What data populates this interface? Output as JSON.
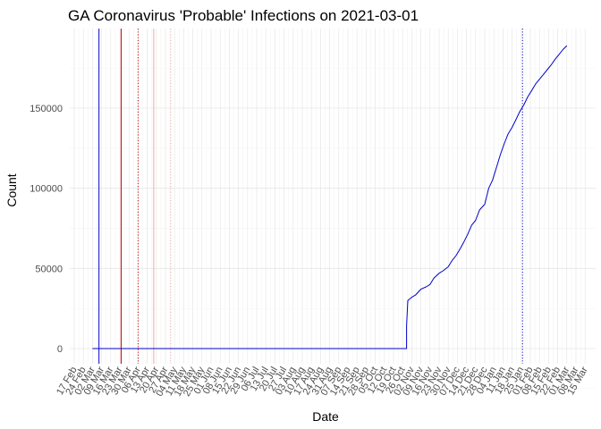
{
  "chart_data": {
    "type": "line",
    "title": "GA Coronavirus 'Probable' Infections on 2021-03-01",
    "xlabel": "Date",
    "ylabel": "Count",
    "ylim": [
      -10000,
      197000
    ],
    "y_ticks": [
      0,
      50000,
      100000,
      150000
    ],
    "y_tick_labels": [
      "0",
      "50000",
      "100000",
      "150000"
    ],
    "x_tick_labels": [
      "17 Feb",
      "24 Feb",
      "02 Mar",
      "09 Mar",
      "16 Mar",
      "23 Mar",
      "30 Mar",
      "06 Apr",
      "13 Apr",
      "20 Apr",
      "27 Apr",
      "04 May",
      "11 May",
      "18 May",
      "25 May",
      "01 Jun",
      "08 Jun",
      "15 Jun",
      "22 Jun",
      "29 Jun",
      "06 Jul",
      "13 Jul",
      "20 Jul",
      "27 Jul",
      "03 Aug",
      "10 Aug",
      "17 Aug",
      "24 Aug",
      "31 Aug",
      "07 Sep",
      "14 Sep",
      "21 Sep",
      "28 Sep",
      "05 Oct",
      "12 Oct",
      "19 Oct",
      "26 Oct",
      "02 Nov",
      "09 Nov",
      "16 Nov",
      "23 Nov",
      "30 Nov",
      "07 Dec",
      "14 Dec",
      "21 Dec",
      "28 Dec",
      "04 Jan",
      "11 Jan",
      "18 Jan",
      "25 Jan",
      "01 Feb",
      "08 Feb",
      "15 Feb",
      "22 Feb",
      "01 Mar",
      "08 Mar",
      "15 Mar"
    ],
    "grid": true,
    "series": [
      {
        "color": "#0000cc",
        "points": [
          [
            "2020-03-02",
            0
          ],
          [
            "2020-10-29",
            0
          ],
          [
            "2020-10-29",
            14000
          ],
          [
            "2020-10-30",
            30000
          ],
          [
            "2020-11-02",
            32000
          ],
          [
            "2020-11-05",
            33500
          ],
          [
            "2020-11-09",
            37000
          ],
          [
            "2020-11-13",
            38500
          ],
          [
            "2020-11-16",
            40000
          ],
          [
            "2020-11-19",
            44000
          ],
          [
            "2020-11-23",
            47000
          ],
          [
            "2020-11-26",
            48500
          ],
          [
            "2020-11-30",
            51000
          ],
          [
            "2020-12-03",
            55000
          ],
          [
            "2020-12-06",
            58000
          ],
          [
            "2020-12-09",
            62000
          ],
          [
            "2020-12-12",
            66500
          ],
          [
            "2020-12-15",
            71500
          ],
          [
            "2020-12-18",
            77000
          ],
          [
            "2020-12-21",
            80000
          ],
          [
            "2020-12-24",
            86500
          ],
          [
            "2020-12-28",
            90000
          ],
          [
            "2020-12-31",
            100000
          ],
          [
            "2021-01-03",
            105000
          ],
          [
            "2021-01-06",
            113000
          ],
          [
            "2021-01-09",
            121000
          ],
          [
            "2021-01-12",
            128000
          ],
          [
            "2021-01-15",
            134000
          ],
          [
            "2021-01-18",
            138000
          ],
          [
            "2021-01-21",
            143000
          ],
          [
            "2021-01-24",
            148000
          ],
          [
            "2021-01-27",
            152000
          ],
          [
            "2021-01-30",
            157000
          ],
          [
            "2021-02-02",
            161000
          ],
          [
            "2021-02-05",
            165000
          ],
          [
            "2021-02-08",
            168000
          ],
          [
            "2021-02-11",
            171000
          ],
          [
            "2021-02-14",
            174000
          ],
          [
            "2021-02-17",
            177000
          ],
          [
            "2021-02-20",
            180500
          ],
          [
            "2021-02-23",
            183500
          ],
          [
            "2021-02-26",
            186500
          ],
          [
            "2021-03-01",
            189000
          ]
        ]
      }
    ],
    "vlines": [
      {
        "date": "2020-03-07",
        "color": "#0000cc",
        "style": "solid"
      },
      {
        "date": "2020-03-24",
        "color": "#cc0000",
        "style": "solid"
      },
      {
        "date": "2020-04-06",
        "color": "#cc0000",
        "style": "dotted"
      },
      {
        "date": "2020-04-18",
        "color": "#f2a6a6",
        "style": "solid"
      },
      {
        "date": "2020-05-01",
        "color": "#f2a6a6",
        "style": "dotted"
      },
      {
        "date": "2021-01-26",
        "color": "#0000cc",
        "style": "dotted"
      }
    ]
  }
}
